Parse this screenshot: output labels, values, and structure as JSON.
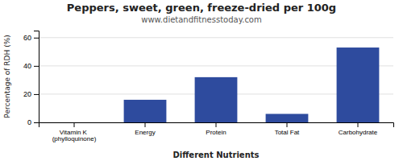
{
  "chart_data": {
    "type": "bar",
    "title": "Peppers, sweet, green, freeze-dried per 100g",
    "subtitle": "www.dietandfitnesstoday.com",
    "xlabel": "Different Nutrients",
    "ylabel": "Percentage of RDH (%)",
    "categories": [
      "Vitamin K (phylloquinone)",
      "Energy",
      "Protein",
      "Total Fat",
      "Carbohydrate"
    ],
    "values": [
      0,
      16,
      32,
      6,
      53
    ],
    "color": "#2e4b9e",
    "ylim": [
      0,
      65
    ],
    "yticks": [
      0,
      20,
      40,
      60
    ],
    "grid": true
  }
}
